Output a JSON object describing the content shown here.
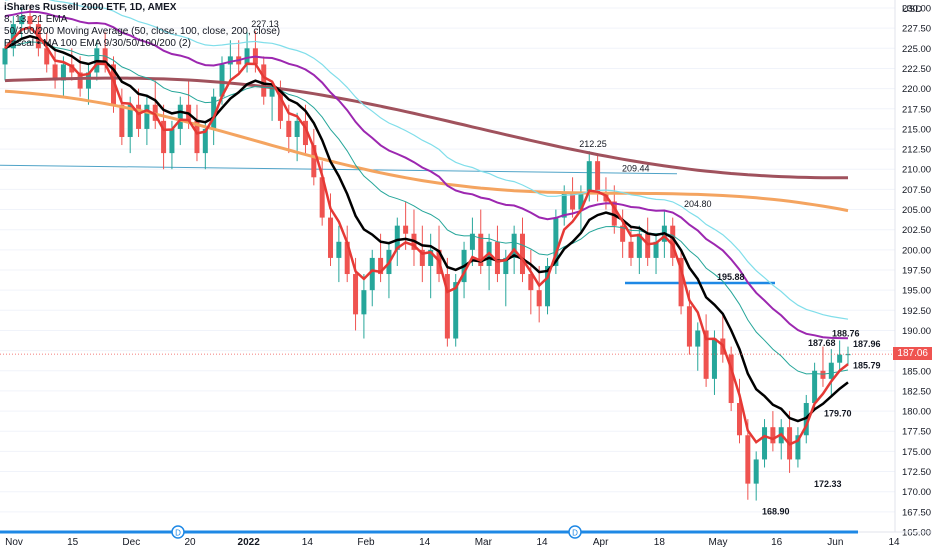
{
  "legend": {
    "line1": "iShares Russell 2000 ETF, 1D, AMEX",
    "line2": "8, 13, 21 EMA",
    "line3": "50/100/200 Moving Average (50, close, 100, close, 200, close)",
    "line4": "Pascal • MA 100 EMA 9/30/50/100/200 (2)"
  },
  "colors": {
    "up": "#26a69a",
    "down": "#ef5350",
    "ema_red": "#e53935",
    "ma_black": "#000000",
    "teal_ma": "#26a69a",
    "purple_ma": "#9c27b0",
    "cyan_ma": "#80deea",
    "orange_ma": "#f4a460",
    "brown_ma": "#a0525d",
    "hline": "#1e88e5"
  },
  "current_price": "187.06",
  "chart_data": {
    "type": "candlestick",
    "title": "iShares Russell 2000 ETF, 1D, AMEX",
    "y_axis_label": "USD",
    "ylim": [
      165,
      230
    ],
    "y_ticks": [
      "230.00",
      "227.50",
      "225.00",
      "222.50",
      "220.00",
      "217.50",
      "215.00",
      "212.50",
      "210.00",
      "207.50",
      "205.00",
      "202.50",
      "200.00",
      "197.50",
      "195.00",
      "192.50",
      "190.00",
      "187.50",
      "185.00",
      "182.50",
      "180.00",
      "177.50",
      "175.00",
      "172.50",
      "170.00",
      "167.50",
      "165.00"
    ],
    "x_ticks": [
      "Nov",
      "15",
      "Dec",
      "20",
      "2022",
      "14",
      "Feb",
      "14",
      "Mar",
      "14",
      "Apr",
      "18",
      "May",
      "16",
      "Jun",
      "14"
    ],
    "price_labels": [
      {
        "text": "227.13",
        "value": 227.13
      },
      {
        "text": "212.25",
        "value": 212.25
      },
      {
        "text": "209.44",
        "value": 209.44
      },
      {
        "text": "204.80",
        "value": 204.8
      },
      {
        "text": "195.88",
        "value": 195.88
      },
      {
        "text": "188.76",
        "value": 188.76
      },
      {
        "text": "187.68",
        "value": 187.68
      },
      {
        "text": "187.96",
        "value": 187.96
      },
      {
        "text": "185.79",
        "value": 185.79
      },
      {
        "text": "179.70",
        "value": 179.7
      },
      {
        "text": "172.33",
        "value": 172.33
      },
      {
        "text": "168.90",
        "value": 168.9
      }
    ],
    "horizontal_levels": [
      195.88,
      165.0
    ],
    "candles": [
      [
        223,
        226,
        221,
        225
      ],
      [
        225,
        229,
        224,
        228
      ],
      [
        228,
        230,
        226,
        229
      ],
      [
        229,
        230,
        227,
        228
      ],
      [
        228,
        229,
        224,
        225
      ],
      [
        225,
        227,
        222,
        223
      ],
      [
        223,
        225,
        220,
        221
      ],
      [
        221,
        224,
        219,
        223
      ],
      [
        223,
        225,
        221,
        222
      ],
      [
        222,
        224,
        219,
        220
      ],
      [
        220,
        223,
        218,
        222
      ],
      [
        222,
        226,
        221,
        225
      ],
      [
        225,
        227,
        222,
        223
      ],
      [
        223,
        224,
        217,
        218
      ],
      [
        218,
        220,
        213,
        214
      ],
      [
        214,
        219,
        212,
        218
      ],
      [
        218,
        220,
        214,
        215
      ],
      [
        215,
        219,
        213,
        218
      ],
      [
        218,
        221,
        215,
        216
      ],
      [
        216,
        218,
        210,
        212
      ],
      [
        212,
        216,
        210,
        215
      ],
      [
        215,
        219,
        213,
        218
      ],
      [
        218,
        221,
        215,
        216
      ],
      [
        216,
        218,
        211,
        212
      ],
      [
        212,
        216,
        210,
        215
      ],
      [
        215,
        220,
        213,
        219
      ],
      [
        219,
        224,
        218,
        223
      ],
      [
        223,
        226,
        221,
        224
      ],
      [
        224,
        226,
        222,
        223
      ],
      [
        223,
        227,
        222,
        225
      ],
      [
        225,
        227.13,
        222,
        223
      ],
      [
        223,
        224,
        218,
        219
      ],
      [
        219,
        221,
        216,
        220
      ],
      [
        220,
        221,
        215,
        216
      ],
      [
        216,
        218,
        212,
        214
      ],
      [
        214,
        217,
        211,
        216
      ],
      [
        216,
        218,
        212,
        213
      ],
      [
        213,
        215,
        208,
        209
      ],
      [
        209,
        211,
        203,
        204
      ],
      [
        204,
        207,
        198,
        199
      ],
      [
        199,
        203,
        196,
        201
      ],
      [
        201,
        203,
        196,
        197
      ],
      [
        197,
        199,
        190,
        192
      ],
      [
        192,
        197,
        189,
        195
      ],
      [
        195,
        200,
        193,
        199
      ],
      [
        199,
        202,
        196,
        197
      ],
      [
        197,
        201,
        194,
        200
      ],
      [
        200,
        204,
        198,
        203
      ],
      [
        203,
        206,
        200,
        202
      ],
      [
        202,
        205,
        198,
        200
      ],
      [
        200,
        203,
        196,
        198
      ],
      [
        198,
        202,
        194,
        200
      ],
      [
        200,
        203,
        196,
        197
      ],
      [
        197,
        199,
        188,
        189
      ],
      [
        189,
        197,
        188,
        196
      ],
      [
        196,
        201,
        194,
        200
      ],
      [
        200,
        204,
        198,
        202
      ],
      [
        202,
        205,
        197,
        198
      ],
      [
        198,
        202,
        195,
        201
      ],
      [
        201,
        203,
        196,
        197
      ],
      [
        197,
        200,
        193,
        199
      ],
      [
        199,
        203,
        197,
        202
      ],
      [
        202,
        204,
        196,
        197
      ],
      [
        197,
        200,
        192,
        195
      ],
      [
        195,
        198,
        191,
        193
      ],
      [
        193,
        199,
        192,
        198
      ],
      [
        198,
        205,
        197,
        204
      ],
      [
        204,
        208,
        203,
        207
      ],
      [
        207,
        209,
        204,
        205
      ],
      [
        205,
        208,
        202,
        207
      ],
      [
        207,
        212.25,
        206,
        211
      ],
      [
        211,
        212,
        206,
        207
      ],
      [
        207,
        209,
        205,
        206
      ],
      [
        206,
        208,
        202,
        203
      ],
      [
        203,
        205,
        199,
        201
      ],
      [
        201,
        203,
        198,
        199
      ],
      [
        199,
        203,
        197,
        202
      ],
      [
        202,
        204,
        198,
        199
      ],
      [
        199,
        202,
        197,
        201
      ],
      [
        201,
        204.8,
        199,
        203
      ],
      [
        203,
        204,
        198,
        199
      ],
      [
        199,
        200,
        192,
        193
      ],
      [
        193,
        195,
        187,
        188
      ],
      [
        188,
        191,
        185,
        190
      ],
      [
        190,
        192,
        183,
        184
      ],
      [
        184,
        190,
        182,
        189
      ],
      [
        189,
        192,
        186,
        187
      ],
      [
        187,
        188,
        180,
        181
      ],
      [
        181,
        184,
        176,
        177
      ],
      [
        177,
        179,
        169,
        171
      ],
      [
        171,
        175,
        168.9,
        174
      ],
      [
        174,
        179,
        173,
        178
      ],
      [
        178,
        180,
        175,
        176
      ],
      [
        176,
        179,
        174,
        178
      ],
      [
        178,
        180,
        172.33,
        174
      ],
      [
        174,
        178,
        173,
        177
      ],
      [
        177,
        182,
        176,
        181
      ],
      [
        181,
        186,
        180,
        185
      ],
      [
        185,
        188,
        183,
        184
      ],
      [
        184,
        187.68,
        182,
        186
      ],
      [
        186,
        188.76,
        185,
        187
      ],
      [
        187,
        188,
        185.79,
        187.06
      ]
    ],
    "series": [
      {
        "name": "8, 13, 21 EMA",
        "values": []
      },
      {
        "name": "50/100/200 Moving Average",
        "values": []
      },
      {
        "name": "Pascal • MA 100 EMA 9/30/50/100/200",
        "values": []
      }
    ]
  }
}
